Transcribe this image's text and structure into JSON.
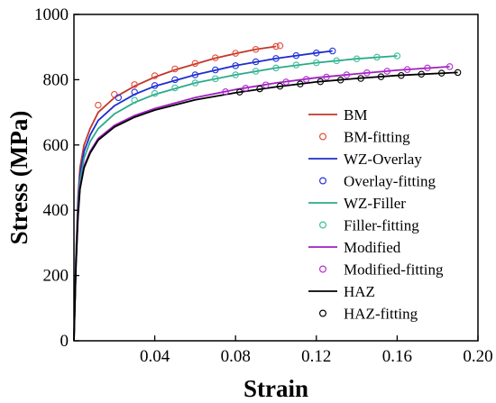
{
  "chart_data": {
    "type": "line",
    "title": "",
    "xlabel": "Strain",
    "ylabel": "Stress (MPa)",
    "xlim": [
      0.0,
      0.2
    ],
    "ylim": [
      0,
      1000
    ],
    "xticks": [
      0.04,
      0.08,
      0.12,
      0.16,
      0.2
    ],
    "xtick_labels": [
      "0.04",
      "0.08",
      "0.12",
      "0.16",
      "0.20"
    ],
    "yticks": [
      0,
      200,
      400,
      600,
      800,
      1000
    ],
    "ytick_labels": [
      "0",
      "200",
      "400",
      "600",
      "800",
      "1000"
    ],
    "grid": false,
    "legend_position": "right",
    "series": [
      {
        "name": "BM",
        "kind": "line",
        "color": "#c0392b",
        "x": [
          0.0,
          0.001,
          0.002,
          0.003,
          0.005,
          0.008,
          0.012,
          0.02,
          0.03,
          0.04,
          0.05,
          0.06,
          0.07,
          0.08,
          0.09,
          0.1
        ],
        "y": [
          0,
          260,
          440,
          530,
          600,
          650,
          700,
          745,
          780,
          808,
          830,
          848,
          866,
          880,
          893,
          902
        ]
      },
      {
        "name": "BM-fitting",
        "kind": "marker",
        "color": "#e74c3c",
        "x": [
          0.012,
          0.02,
          0.03,
          0.04,
          0.05,
          0.06,
          0.07,
          0.08,
          0.09,
          0.1,
          0.102
        ],
        "y": [
          722,
          755,
          785,
          812,
          833,
          850,
          867,
          881,
          893,
          902,
          904
        ]
      },
      {
        "name": "WZ-Overlay",
        "kind": "line",
        "color": "#1f2dcc",
        "x": [
          0.0,
          0.001,
          0.002,
          0.003,
          0.005,
          0.008,
          0.012,
          0.02,
          0.03,
          0.04,
          0.06,
          0.08,
          0.1,
          0.12,
          0.128
        ],
        "y": [
          0,
          250,
          420,
          510,
          580,
          630,
          675,
          720,
          755,
          780,
          815,
          843,
          865,
          882,
          888
        ]
      },
      {
        "name": "Overlay-fitting",
        "kind": "marker",
        "color": "#2435e0",
        "x": [
          0.022,
          0.03,
          0.04,
          0.05,
          0.06,
          0.07,
          0.08,
          0.09,
          0.1,
          0.11,
          0.12,
          0.128
        ],
        "y": [
          745,
          762,
          782,
          800,
          815,
          830,
          843,
          855,
          865,
          874,
          882,
          888
        ]
      },
      {
        "name": "WZ-Filler",
        "kind": "line",
        "color": "#2aaa8a",
        "x": [
          0.0,
          0.001,
          0.002,
          0.003,
          0.005,
          0.008,
          0.012,
          0.02,
          0.03,
          0.04,
          0.06,
          0.08,
          0.1,
          0.12,
          0.14,
          0.16
        ],
        "y": [
          0,
          240,
          400,
          490,
          560,
          610,
          650,
          695,
          730,
          755,
          790,
          815,
          836,
          852,
          864,
          873
        ]
      },
      {
        "name": "Filler-fitting",
        "kind": "marker",
        "color": "#3cbf9c",
        "x": [
          0.03,
          0.04,
          0.05,
          0.06,
          0.07,
          0.08,
          0.09,
          0.1,
          0.11,
          0.12,
          0.13,
          0.14,
          0.15,
          0.16
        ],
        "y": [
          737,
          758,
          775,
          790,
          803,
          815,
          826,
          836,
          845,
          852,
          858,
          864,
          869,
          873
        ]
      },
      {
        "name": "Modified",
        "kind": "line",
        "color": "#a020c0",
        "x": [
          0.0,
          0.001,
          0.002,
          0.003,
          0.005,
          0.008,
          0.012,
          0.02,
          0.03,
          0.04,
          0.06,
          0.08,
          0.1,
          0.12,
          0.14,
          0.16,
          0.186
        ],
        "y": [
          0,
          230,
          390,
          470,
          535,
          580,
          620,
          660,
          690,
          712,
          745,
          770,
          790,
          806,
          818,
          829,
          840
        ]
      },
      {
        "name": "Modified-fitting",
        "kind": "marker",
        "color": "#b030d0",
        "x": [
          0.075,
          0.085,
          0.095,
          0.105,
          0.115,
          0.125,
          0.135,
          0.145,
          0.155,
          0.165,
          0.175,
          0.186
        ],
        "y": [
          763,
          774,
          784,
          793,
          801,
          808,
          815,
          821,
          826,
          831,
          836,
          840
        ]
      },
      {
        "name": "HAZ",
        "kind": "line",
        "color": "#000000",
        "x": [
          0.0,
          0.001,
          0.002,
          0.003,
          0.005,
          0.008,
          0.012,
          0.02,
          0.03,
          0.04,
          0.06,
          0.08,
          0.1,
          0.12,
          0.14,
          0.16,
          0.19
        ],
        "y": [
          0,
          225,
          380,
          465,
          530,
          575,
          615,
          655,
          685,
          707,
          738,
          760,
          778,
          793,
          804,
          813,
          822
        ]
      },
      {
        "name": "HAZ-fitting",
        "kind": "marker",
        "color": "#000000",
        "x": [
          0.082,
          0.092,
          0.102,
          0.112,
          0.122,
          0.132,
          0.142,
          0.152,
          0.162,
          0.172,
          0.182,
          0.19
        ],
        "y": [
          762,
          772,
          780,
          787,
          794,
          799,
          804,
          809,
          813,
          817,
          820,
          822
        ]
      }
    ]
  }
}
